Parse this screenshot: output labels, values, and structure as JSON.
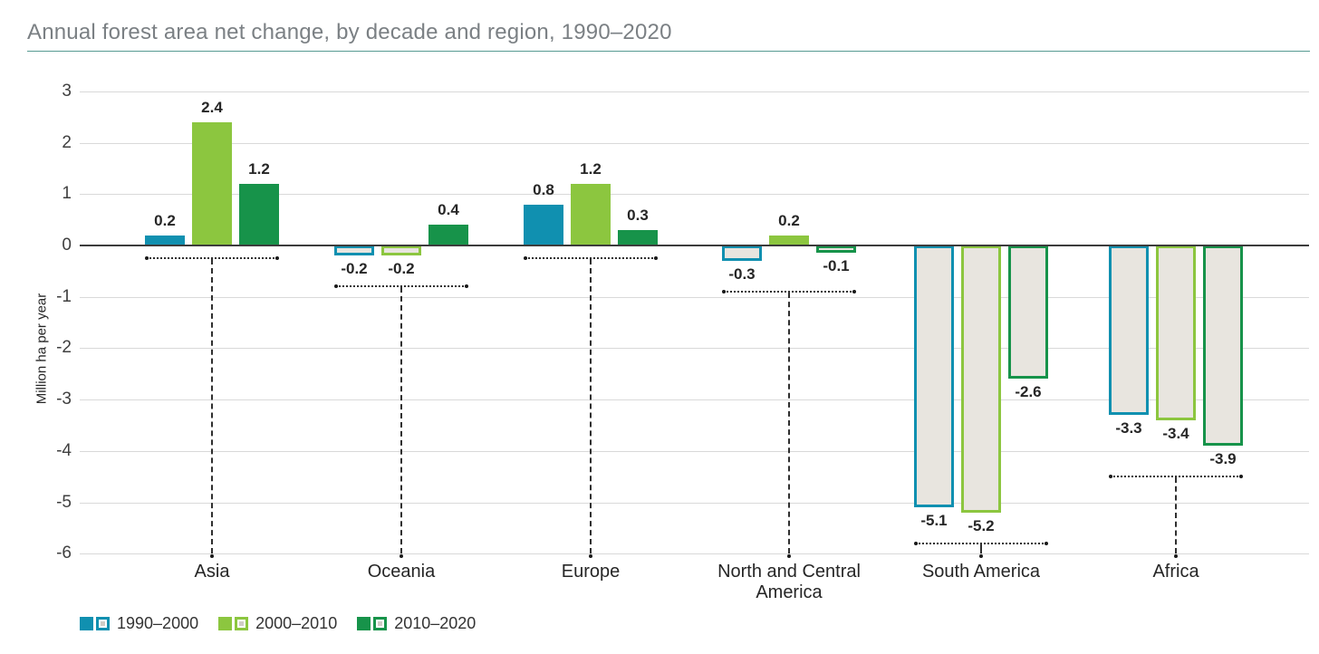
{
  "page": {
    "title": "Annual forest area net change, by decade and region, 1990–2020"
  },
  "chart_data": {
    "type": "bar",
    "title": "Annual forest area net change, by decade and region, 1990–2020",
    "xlabel": "",
    "ylabel": "Million ha per year",
    "ylim": [
      -6,
      3
    ],
    "yticks": [
      3,
      2,
      1,
      0,
      -1,
      -2,
      -3,
      -4,
      -5,
      -6
    ],
    "grid": true,
    "legend_position": "bottom-left",
    "categories": [
      "Asia",
      "Oceania",
      "Europe",
      "North and Central America",
      "South America",
      "Africa"
    ],
    "series": [
      {
        "name": "1990–2000",
        "color": "#1090b0",
        "values": [
          0.2,
          -0.2,
          0.8,
          -0.3,
          -5.1,
          -3.3
        ]
      },
      {
        "name": "2000–2010",
        "color": "#8cc63f",
        "values": [
          2.4,
          -0.2,
          1.2,
          0.2,
          -5.2,
          -3.4
        ]
      },
      {
        "name": "2010–2020",
        "color": "#17934a",
        "values": [
          1.2,
          0.4,
          0.3,
          -0.1,
          -2.6,
          -3.9
        ]
      }
    ],
    "value_labels": {
      "Asia": [
        "0.2",
        "2.4",
        "1.2"
      ],
      "Oceania": [
        "-0.2",
        "-0.2",
        "0.4"
      ],
      "Europe": [
        "0.8",
        "1.2",
        "0.3"
      ],
      "North and Central America": [
        "-0.3",
        "0.2",
        "-0.1"
      ],
      "South America": [
        "-5.1",
        "-5.2",
        "-2.6"
      ],
      "Africa": [
        "-3.3",
        "-3.4",
        "-3.9"
      ]
    },
    "colors": {
      "negative_fill": "#e8e5df",
      "grid": "#d9d9d9",
      "zero_line": "#3c3c3c",
      "title": "#7b8084",
      "title_underline": "#579a93",
      "text": "#262626",
      "tick_text": "#404040",
      "bracket": "#2f2f2f",
      "legend_inner_square": "#cfccc6"
    }
  }
}
